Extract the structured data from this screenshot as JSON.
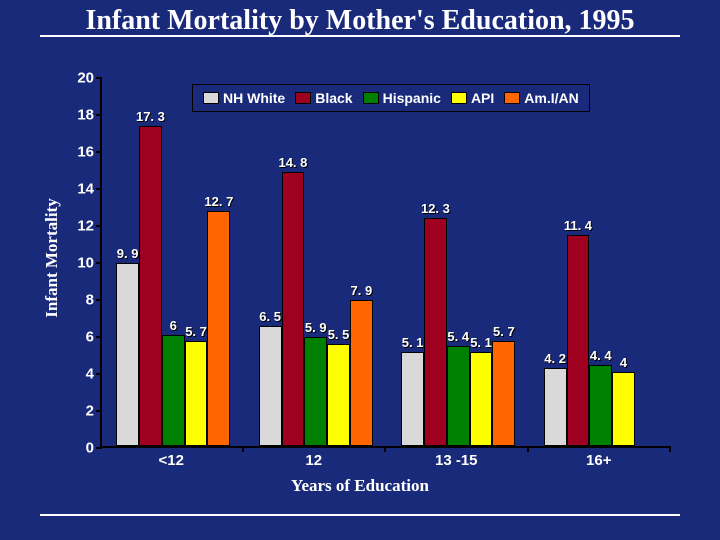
{
  "title": "Infant Mortality by Mother's Education, 1995",
  "chart": {
    "type": "bar",
    "background_color": "#1a2a7a",
    "y_axis": {
      "title": "Infant Mortality",
      "min": 0,
      "max": 20,
      "step": 2,
      "label_color": "#ffffff",
      "label_fontsize": 15
    },
    "x_axis": {
      "title": "Years of Education",
      "categories": [
        "<12",
        "12",
        "13 -15",
        "16+"
      ],
      "label_color": "#ffffff",
      "label_fontsize": 15
    },
    "series": [
      {
        "name": "NH White",
        "color": "#d9d9d9",
        "values": [
          9.9,
          6.5,
          5.1,
          4.2
        ]
      },
      {
        "name": "Black",
        "color": "#a00020",
        "values": [
          17.3,
          14.8,
          12.3,
          11.4
        ]
      },
      {
        "name": "Hispanic",
        "color": "#008000",
        "values": [
          6.0,
          5.9,
          5.4,
          4.4
        ]
      },
      {
        "name": "API",
        "color": "#ffff00",
        "values": [
          5.7,
          5.5,
          5.1,
          4.0
        ]
      },
      {
        "name": "Am.I/AN",
        "color": "#ff6600",
        "values": [
          12.7,
          7.9,
          5.7,
          null
        ]
      }
    ],
    "legend": {
      "items": [
        {
          "label": "NH White",
          "color": "#d9d9d9"
        },
        {
          "label": "Black",
          "color": "#a00020"
        },
        {
          "label": "Hispanic",
          "color": "#008000"
        },
        {
          "label": "API",
          "color": "#ffff00"
        },
        {
          "label": "Am.I/AN",
          "color": "#ff6600"
        }
      ],
      "border_color": "#000000",
      "text_color": "#ffffff",
      "fontsize": 14
    },
    "bar_border_color": "#000000",
    "value_label_color": "#ffffff",
    "value_label_fontsize": 13,
    "axis_line_color": "#000000",
    "title_underline_color": "#ffffff"
  }
}
